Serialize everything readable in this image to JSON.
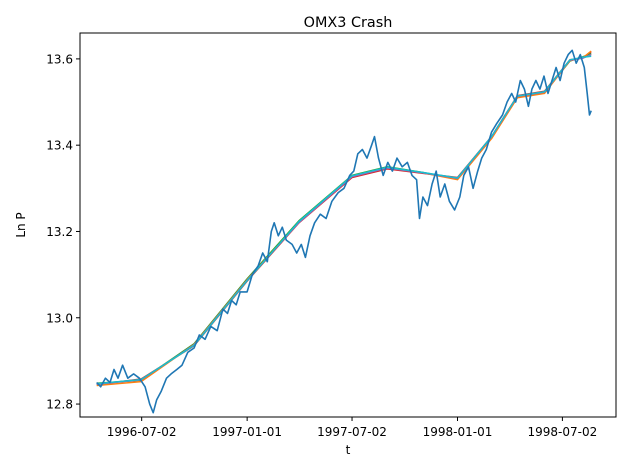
{
  "chart_data": {
    "type": "line",
    "title": "OMX3 Crash",
    "xlabel": "t",
    "ylabel": "Ln P",
    "x_axis_type": "date",
    "xlim": [
      "1996-03-17",
      "1998-10-03"
    ],
    "ylim": [
      12.77,
      13.66
    ],
    "x_ticks": [
      "1996-07-02",
      "1997-01-01",
      "1997-07-02",
      "1998-01-01",
      "1998-07-02"
    ],
    "y_ticks": [
      12.8,
      13.0,
      13.2,
      13.4,
      13.6
    ],
    "grid": false,
    "legend": "none",
    "series": [
      {
        "color": "#1f77b4",
        "points": [
          [
            "1996-04-15",
            12.85
          ],
          [
            "1996-04-22",
            12.84
          ],
          [
            "1996-04-30",
            12.86
          ],
          [
            "1996-05-08",
            12.85
          ],
          [
            "1996-05-15",
            12.88
          ],
          [
            "1996-05-22",
            12.86
          ],
          [
            "1996-05-30",
            12.89
          ],
          [
            "1996-06-08",
            12.86
          ],
          [
            "1996-06-18",
            12.87
          ],
          [
            "1996-06-28",
            12.86
          ],
          [
            "1996-07-08",
            12.84
          ],
          [
            "1996-07-16",
            12.8
          ],
          [
            "1996-07-22",
            12.78
          ],
          [
            "1996-07-28",
            12.81
          ],
          [
            "1996-08-05",
            12.83
          ],
          [
            "1996-08-14",
            12.86
          ],
          [
            "1996-08-22",
            12.87
          ],
          [
            "1996-09-01",
            12.88
          ],
          [
            "1996-09-10",
            12.89
          ],
          [
            "1996-09-20",
            12.92
          ],
          [
            "1996-10-01",
            12.93
          ],
          [
            "1996-10-10",
            12.96
          ],
          [
            "1996-10-20",
            12.95
          ],
          [
            "1996-10-30",
            12.98
          ],
          [
            "1996-11-10",
            12.97
          ],
          [
            "1996-11-20",
            13.02
          ],
          [
            "1996-11-28",
            13.01
          ],
          [
            "1996-12-05",
            13.04
          ],
          [
            "1996-12-13",
            13.03
          ],
          [
            "1996-12-20",
            13.06
          ],
          [
            "1997-01-01",
            13.06
          ],
          [
            "1997-01-10",
            13.1
          ],
          [
            "1997-01-20",
            13.12
          ],
          [
            "1997-01-28",
            13.15
          ],
          [
            "1997-02-05",
            13.13
          ],
          [
            "1997-02-12",
            13.2
          ],
          [
            "1997-02-17",
            13.22
          ],
          [
            "1997-02-24",
            13.19
          ],
          [
            "1997-03-03",
            13.21
          ],
          [
            "1997-03-10",
            13.18
          ],
          [
            "1997-03-20",
            13.17
          ],
          [
            "1997-03-28",
            13.15
          ],
          [
            "1997-04-05",
            13.17
          ],
          [
            "1997-04-12",
            13.14
          ],
          [
            "1997-04-20",
            13.19
          ],
          [
            "1997-04-28",
            13.22
          ],
          [
            "1997-05-08",
            13.24
          ],
          [
            "1997-05-18",
            13.23
          ],
          [
            "1997-05-28",
            13.27
          ],
          [
            "1997-06-08",
            13.29
          ],
          [
            "1997-06-18",
            13.3
          ],
          [
            "1997-06-28",
            13.33
          ],
          [
            "1997-07-05",
            13.34
          ],
          [
            "1997-07-12",
            13.38
          ],
          [
            "1997-07-20",
            13.39
          ],
          [
            "1997-07-28",
            13.37
          ],
          [
            "1997-08-05",
            13.4
          ],
          [
            "1997-08-10",
            13.42
          ],
          [
            "1997-08-17",
            13.37
          ],
          [
            "1997-08-25",
            13.33
          ],
          [
            "1997-09-02",
            13.36
          ],
          [
            "1997-09-10",
            13.34
          ],
          [
            "1997-09-18",
            13.37
          ],
          [
            "1997-09-27",
            13.35
          ],
          [
            "1997-10-06",
            13.36
          ],
          [
            "1997-10-14",
            13.33
          ],
          [
            "1997-10-22",
            13.32
          ],
          [
            "1997-10-27",
            13.23
          ],
          [
            "1997-11-02",
            13.28
          ],
          [
            "1997-11-10",
            13.26
          ],
          [
            "1997-11-18",
            13.31
          ],
          [
            "1997-11-25",
            13.34
          ],
          [
            "1997-12-02",
            13.28
          ],
          [
            "1997-12-10",
            13.31
          ],
          [
            "1997-12-18",
            13.27
          ],
          [
            "1997-12-27",
            13.25
          ],
          [
            "1998-01-05",
            13.28
          ],
          [
            "1998-01-12",
            13.33
          ],
          [
            "1998-01-20",
            13.35
          ],
          [
            "1998-01-28",
            13.3
          ],
          [
            "1998-02-05",
            13.34
          ],
          [
            "1998-02-12",
            13.37
          ],
          [
            "1998-02-20",
            13.39
          ],
          [
            "1998-03-01",
            13.43
          ],
          [
            "1998-03-10",
            13.45
          ],
          [
            "1998-03-20",
            13.47
          ],
          [
            "1998-03-28",
            13.5
          ],
          [
            "1998-04-05",
            13.52
          ],
          [
            "1998-04-12",
            13.5
          ],
          [
            "1998-04-20",
            13.55
          ],
          [
            "1998-04-27",
            13.53
          ],
          [
            "1998-05-04",
            13.49
          ],
          [
            "1998-05-10",
            13.53
          ],
          [
            "1998-05-17",
            13.55
          ],
          [
            "1998-05-24",
            13.53
          ],
          [
            "1998-05-31",
            13.56
          ],
          [
            "1998-06-07",
            13.52
          ],
          [
            "1998-06-14",
            13.55
          ],
          [
            "1998-06-21",
            13.58
          ],
          [
            "1998-06-28",
            13.55
          ],
          [
            "1998-07-05",
            13.59
          ],
          [
            "1998-07-12",
            13.61
          ],
          [
            "1998-07-19",
            13.62
          ],
          [
            "1998-07-26",
            13.59
          ],
          [
            "1998-08-02",
            13.61
          ],
          [
            "1998-08-09",
            13.58
          ],
          [
            "1998-08-14",
            13.52
          ],
          [
            "1998-08-18",
            13.47
          ],
          [
            "1998-08-21",
            13.48
          ]
        ]
      },
      {
        "color": "#d62728",
        "points": [
          [
            "1996-04-15",
            12.845
          ],
          [
            "1996-07-01",
            12.858
          ],
          [
            "1996-10-01",
            12.935
          ],
          [
            "1997-01-01",
            13.085
          ],
          [
            "1997-04-01",
            13.22
          ],
          [
            "1997-07-02",
            13.325
          ],
          [
            "1997-09-01",
            13.345
          ],
          [
            "1997-11-01",
            13.335
          ],
          [
            "1998-01-01",
            13.325
          ],
          [
            "1998-03-01",
            13.42
          ],
          [
            "1998-04-15",
            13.515
          ],
          [
            "1998-06-01",
            13.525
          ],
          [
            "1998-07-15",
            13.598
          ],
          [
            "1998-08-07",
            13.602
          ],
          [
            "1998-08-21",
            13.615
          ]
        ]
      },
      {
        "color": "#2ca02c",
        "points": [
          [
            "1996-04-15",
            12.848
          ],
          [
            "1996-07-01",
            12.855
          ],
          [
            "1996-10-01",
            12.94
          ],
          [
            "1997-01-01",
            13.09
          ],
          [
            "1997-04-01",
            13.225
          ],
          [
            "1997-07-02",
            13.33
          ],
          [
            "1997-09-01",
            13.35
          ],
          [
            "1997-11-01",
            13.337
          ],
          [
            "1998-01-01",
            13.322
          ],
          [
            "1998-03-01",
            13.418
          ],
          [
            "1998-04-15",
            13.512
          ],
          [
            "1998-06-01",
            13.522
          ],
          [
            "1998-07-15",
            13.595
          ],
          [
            "1998-08-07",
            13.605
          ],
          [
            "1998-08-21",
            13.612
          ]
        ]
      },
      {
        "color": "#ff7f0e",
        "points": [
          [
            "1996-04-15",
            12.843
          ],
          [
            "1996-07-01",
            12.852
          ],
          [
            "1996-10-01",
            12.938
          ],
          [
            "1997-01-01",
            13.088
          ],
          [
            "1997-04-01",
            13.222
          ],
          [
            "1997-07-02",
            13.328
          ],
          [
            "1997-09-01",
            13.348
          ],
          [
            "1997-11-01",
            13.336
          ],
          [
            "1998-01-01",
            13.32
          ],
          [
            "1998-03-01",
            13.415
          ],
          [
            "1998-04-15",
            13.51
          ],
          [
            "1998-06-01",
            13.52
          ],
          [
            "1998-07-15",
            13.596
          ],
          [
            "1998-08-07",
            13.603
          ],
          [
            "1998-08-21",
            13.618
          ]
        ]
      },
      {
        "color": "#9467bd",
        "points": [
          [
            "1996-04-15",
            12.846
          ],
          [
            "1996-07-01",
            12.856
          ],
          [
            "1996-10-01",
            12.937
          ],
          [
            "1997-01-01",
            13.087
          ],
          [
            "1997-04-01",
            13.221
          ],
          [
            "1997-07-02",
            13.327
          ],
          [
            "1997-09-01",
            13.347
          ],
          [
            "1997-11-01",
            13.336
          ],
          [
            "1998-01-01",
            13.323
          ],
          [
            "1998-03-01",
            13.419
          ],
          [
            "1998-04-15",
            13.513
          ],
          [
            "1998-06-01",
            13.523
          ],
          [
            "1998-07-15",
            13.597
          ],
          [
            "1998-08-07",
            13.602
          ],
          [
            "1998-08-21",
            13.61
          ]
        ]
      },
      {
        "color": "#17becf",
        "points": [
          [
            "1996-04-15",
            12.847
          ],
          [
            "1996-07-01",
            12.857
          ],
          [
            "1996-10-01",
            12.936
          ],
          [
            "1997-01-01",
            13.086
          ],
          [
            "1997-04-01",
            13.223
          ],
          [
            "1997-07-02",
            13.329
          ],
          [
            "1997-09-01",
            13.349
          ],
          [
            "1997-11-01",
            13.337
          ],
          [
            "1998-01-01",
            13.324
          ],
          [
            "1998-03-01",
            13.42
          ],
          [
            "1998-04-15",
            13.514
          ],
          [
            "1998-06-01",
            13.524
          ],
          [
            "1998-07-15",
            13.598
          ],
          [
            "1998-08-07",
            13.604
          ],
          [
            "1998-08-21",
            13.606
          ]
        ]
      }
    ]
  }
}
